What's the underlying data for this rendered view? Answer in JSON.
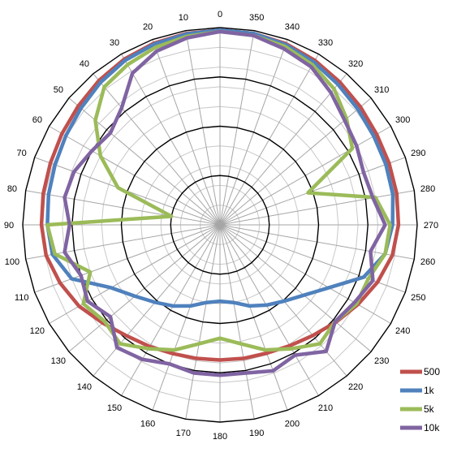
{
  "chart_data": {
    "type": "polar-line",
    "title": "",
    "angle_ticks": [
      "0",
      "10",
      "20",
      "30",
      "40",
      "50",
      "60",
      "70",
      "80",
      "90",
      "100",
      "110",
      "120",
      "130",
      "140",
      "150",
      "160",
      "170",
      "180",
      "190",
      "200",
      "210",
      "220",
      "230",
      "240",
      "250",
      "260",
      "270",
      "280",
      "290",
      "300",
      "310",
      "320",
      "330",
      "340",
      "350"
    ],
    "angle_direction": "counterclockwise",
    "angle_zero": "top",
    "radial_range": [
      -40,
      0
    ],
    "radial_gridlines": 10,
    "radial_major_rings": [
      -30,
      -20,
      -10
    ],
    "grid": true,
    "legend_position": "bottom-right",
    "series": [
      {
        "name": "500",
        "color": "#c0504d",
        "values": [
          -0.5,
          -0.6,
          -0.8,
          -1.2,
          -1.8,
          -2.5,
          -3.0,
          -3.4,
          -3.6,
          -3.8,
          -4.2,
          -5.5,
          -7.0,
          -9.0,
          -10.6,
          -11.5,
          -12.2,
          -12.5,
          -12.6,
          -12.5,
          -12.3,
          -11.7,
          -10.7,
          -9.3,
          -7.7,
          -6.0,
          -4.5,
          -3.8,
          -3.6,
          -3.5,
          -3.3,
          -2.8,
          -2.2,
          -1.5,
          -0.9,
          -0.6
        ],
        "z": 1
      },
      {
        "name": "1k",
        "color": "#4f81bd",
        "values": [
          -0.5,
          -0.7,
          -1.0,
          -1.5,
          -2.3,
          -3.2,
          -3.9,
          -4.4,
          -4.7,
          -5.0,
          -5.5,
          -8.0,
          -14.5,
          -17.5,
          -19.5,
          -21.0,
          -22.5,
          -24.0,
          -24.5,
          -24.0,
          -22.5,
          -21.2,
          -19.8,
          -17.8,
          -14.5,
          -9.0,
          -6.0,
          -5.0,
          -4.4,
          -4.2,
          -4.0,
          -3.5,
          -2.8,
          -1.9,
          -1.1,
          -0.6
        ],
        "z": 2
      },
      {
        "name": "5k",
        "color": "#9bbb59",
        "values": [
          -0.8,
          -1.2,
          -1.7,
          -2.5,
          -3.5,
          -7.0,
          -12.0,
          -18.0,
          -30.0,
          -5.0,
          -6.0,
          -12.0,
          -8.0,
          -9.5,
          -8.5,
          -11.0,
          -13.0,
          -15.5,
          -17.0,
          -15.5,
          -13.0,
          -11.0,
          -8.5,
          -9.5,
          -8.0,
          -8.0,
          -6.0,
          -5.5,
          -8.0,
          -21.0,
          -9.0,
          -6.5,
          -4.0,
          -2.5,
          -1.5,
          -1.0
        ],
        "z": 3
      },
      {
        "name": "10k",
        "color": "#8064a2",
        "values": [
          -0.8,
          -1.5,
          -2.5,
          -4.5,
          -9.0,
          -11.0,
          -10.0,
          -8.5,
          -8.0,
          -9.5,
          -8.0,
          -10.0,
          -9.0,
          -11.0,
          -7.5,
          -8.5,
          -10.0,
          -9.5,
          -9.5,
          -9.5,
          -8.5,
          -9.5,
          -6.5,
          -9.5,
          -8.5,
          -7.0,
          -9.0,
          -6.5,
          -8.5,
          -9.0,
          -8.0,
          -7.0,
          -5.0,
          -3.0,
          -2.0,
          -1.0
        ],
        "z": 4
      }
    ]
  }
}
